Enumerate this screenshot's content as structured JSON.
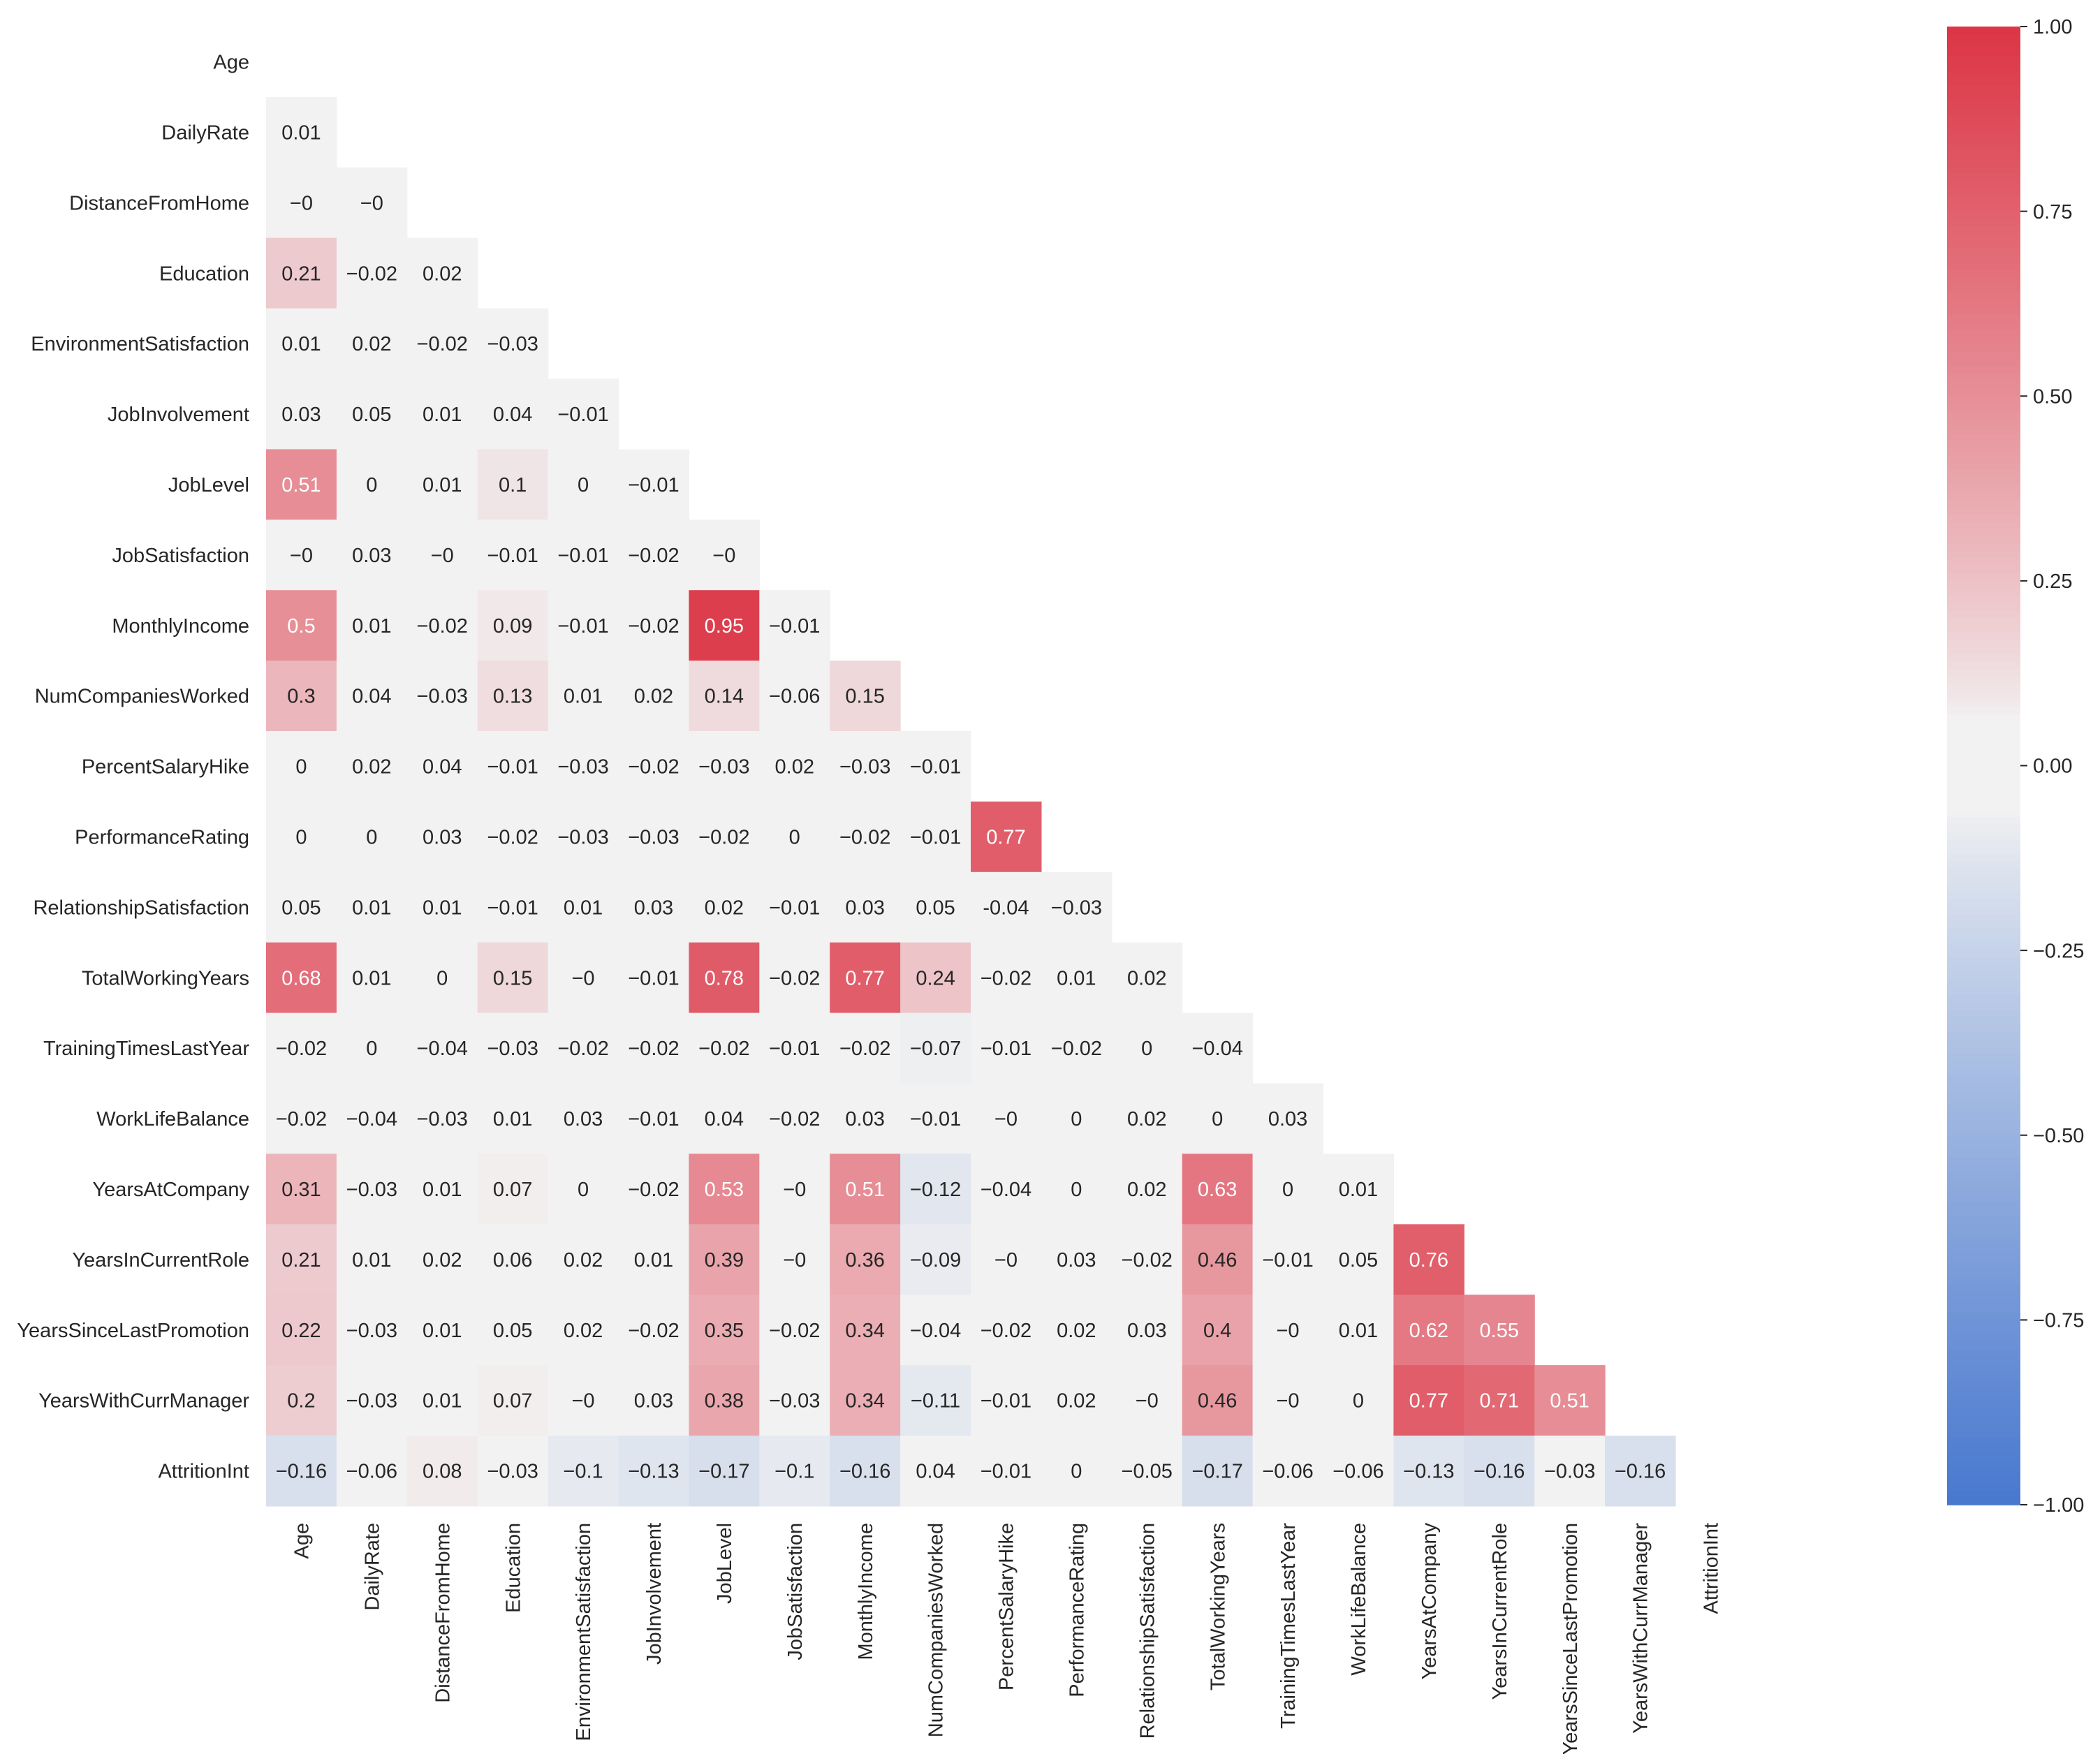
{
  "chart_data": {
    "type": "heatmap",
    "title": "",
    "xlabel": "",
    "ylabel": "",
    "mask": "upper-triangle",
    "variables": [
      "Age",
      "DailyRate",
      "DistanceFromHome",
      "Education",
      "EnvironmentSatisfaction",
      "JobInvolvement",
      "JobLevel",
      "JobSatisfaction",
      "MonthlyIncome",
      "NumCompaniesWorked",
      "PercentSalaryHike",
      "PerformanceRating",
      "RelationshipSatisfaction",
      "TotalWorkingYears",
      "TrainingTimesLastYear",
      "WorkLifeBalance",
      "YearsAtCompany",
      "YearsInCurrentRole",
      "YearsSinceLastPromotion",
      "YearsWithCurrManager",
      "AttritionInt"
    ],
    "value_labels": [
      [],
      [
        "0.01"
      ],
      [
        "−0",
        "−0"
      ],
      [
        "0.21",
        "−0.02",
        "0.02"
      ],
      [
        "0.01",
        "0.02",
        "−0.02",
        "−0.03"
      ],
      [
        "0.03",
        "0.05",
        "0.01",
        "0.04",
        "−0.01"
      ],
      [
        "0.51",
        "0",
        "0.01",
        "0.1",
        "0",
        "−0.01"
      ],
      [
        "−0",
        "0.03",
        "−0",
        "−0.01",
        "−0.01",
        "−0.02",
        "−0"
      ],
      [
        "0.5",
        "0.01",
        "−0.02",
        "0.09",
        "−0.01",
        "−0.02",
        "0.95",
        "−0.01"
      ],
      [
        "0.3",
        "0.04",
        "−0.03",
        "0.13",
        "0.01",
        "0.02",
        "0.14",
        "−0.06",
        "0.15"
      ],
      [
        "0",
        "0.02",
        "0.04",
        "−0.01",
        "−0.03",
        "−0.02",
        "−0.03",
        "0.02",
        "−0.03",
        "−0.01"
      ],
      [
        "0",
        "0",
        "0.03",
        "−0.02",
        "−0.03",
        "−0.03",
        "−0.02",
        "0",
        "−0.02",
        "−0.01",
        "0.77"
      ],
      [
        "0.05",
        "0.01",
        "0.01",
        "−0.01",
        "0.01",
        "0.03",
        "0.02",
        "−0.01",
        "0.03",
        "0.05",
        "-0.04",
        "−0.03"
      ],
      [
        "0.68",
        "0.01",
        "0",
        "0.15",
        "−0",
        "−0.01",
        "0.78",
        "−0.02",
        "0.77",
        "0.24",
        "−0.02",
        "0.01",
        "0.02"
      ],
      [
        "−0.02",
        "0",
        "−0.04",
        "−0.03",
        "−0.02",
        "−0.02",
        "−0.02",
        "−0.01",
        "−0.02",
        "−0.07",
        "−0.01",
        "−0.02",
        "0",
        "−0.04"
      ],
      [
        "−0.02",
        "−0.04",
        "−0.03",
        "0.01",
        "0.03",
        "−0.01",
        "0.04",
        "−0.02",
        "0.03",
        "−0.01",
        "−0",
        "0",
        "0.02",
        "0",
        "0.03"
      ],
      [
        "0.31",
        "−0.03",
        "0.01",
        "0.07",
        "0",
        "−0.02",
        "0.53",
        "−0",
        "0.51",
        "−0.12",
        "−0.04",
        "0",
        "0.02",
        "0.63",
        "0",
        "0.01"
      ],
      [
        "0.21",
        "0.01",
        "0.02",
        "0.06",
        "0.02",
        "0.01",
        "0.39",
        "−0",
        "0.36",
        "−0.09",
        "−0",
        "0.03",
        "−0.02",
        "0.46",
        "−0.01",
        "0.05",
        "0.76"
      ],
      [
        "0.22",
        "−0.03",
        "0.01",
        "0.05",
        "0.02",
        "−0.02",
        "0.35",
        "−0.02",
        "0.34",
        "−0.04",
        "−0.02",
        "0.02",
        "0.03",
        "0.4",
        "−0",
        "0.01",
        "0.62",
        "0.55"
      ],
      [
        "0.2",
        "−0.03",
        "0.01",
        "0.07",
        "−0",
        "0.03",
        "0.38",
        "−0.03",
        "0.34",
        "−0.11",
        "−0.01",
        "0.02",
        "−0",
        "0.46",
        "−0",
        "0",
        "0.77",
        "0.71",
        "0.51"
      ],
      [
        "−0.16",
        "−0.06",
        "0.08",
        "−0.03",
        "−0.1",
        "−0.13",
        "−0.17",
        "−0.1",
        "−0.16",
        "0.04",
        "−0.01",
        "0",
        "−0.05",
        "−0.17",
        "−0.06",
        "−0.06",
        "−0.13",
        "−0.16",
        "−0.03",
        "−0.16"
      ]
    ],
    "colorbar": {
      "range": [
        -1.0,
        1.0
      ],
      "ticks": [
        "1.00",
        "0.75",
        "0.50",
        "0.25",
        "0.00",
        "−0.25",
        "−0.50",
        "−0.75",
        "−1.00"
      ],
      "tick_values": [
        1.0,
        0.75,
        0.5,
        0.25,
        0.0,
        -0.25,
        -0.5,
        -0.75,
        -1.0
      ],
      "colormap": "diverging blue-white-red"
    },
    "colors": {
      "negative": "#4878CF",
      "center": "#F2F2F2",
      "positive": "#DC3545",
      "text_dark": "#262626",
      "text_light": "#ffffff"
    }
  }
}
